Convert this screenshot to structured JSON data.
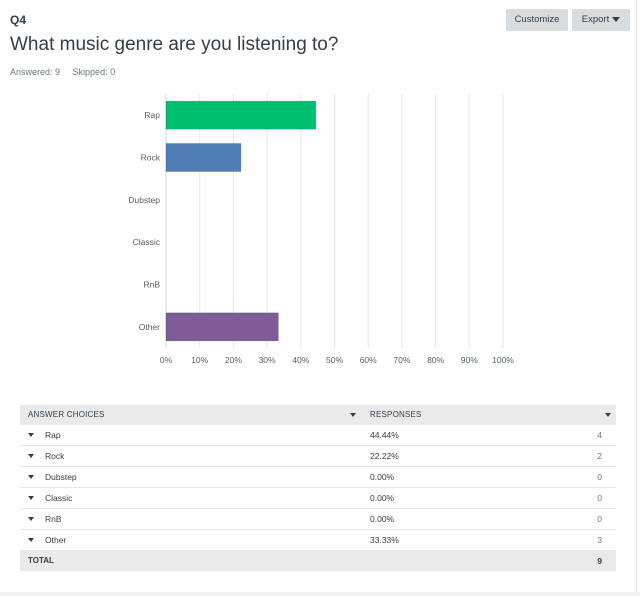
{
  "question": {
    "id": "Q4",
    "title": "What music genre are you listening to?",
    "answered": "Answered: 9",
    "skipped": "Skipped: 0"
  },
  "toolbar": {
    "customize_label": "Customize",
    "export_label": "Export"
  },
  "colors": {
    "rap": "#00bf6f",
    "rock": "#507cb6",
    "other": "#7d5c98",
    "grid": "#e6e6e6"
  },
  "chart_data": {
    "type": "bar",
    "orientation": "horizontal",
    "categories": [
      "Rap",
      "Rock",
      "Dubstep",
      "Classic",
      "RnB",
      "Other"
    ],
    "values": [
      44.44,
      22.22,
      0,
      0,
      0,
      33.33
    ],
    "xlim": [
      0,
      100
    ],
    "x_ticks": [
      "0%",
      "10%",
      "20%",
      "30%",
      "40%",
      "50%",
      "60%",
      "70%",
      "80%",
      "90%",
      "100%"
    ],
    "grid": true
  },
  "table": {
    "headers": {
      "choice": "ANSWER CHOICES",
      "responses": "RESPONSES"
    },
    "rows": [
      {
        "label": "Rap",
        "percent": "44.44%",
        "count": "4"
      },
      {
        "label": "Rock",
        "percent": "22.22%",
        "count": "2"
      },
      {
        "label": "Dubstep",
        "percent": "0.00%",
        "count": "0"
      },
      {
        "label": "Classic",
        "percent": "0.00%",
        "count": "0"
      },
      {
        "label": "RnB",
        "percent": "0.00%",
        "count": "0"
      },
      {
        "label": "Other",
        "percent": "33.33%",
        "count": "3"
      }
    ],
    "total": {
      "label": "TOTAL",
      "count": "9"
    }
  }
}
